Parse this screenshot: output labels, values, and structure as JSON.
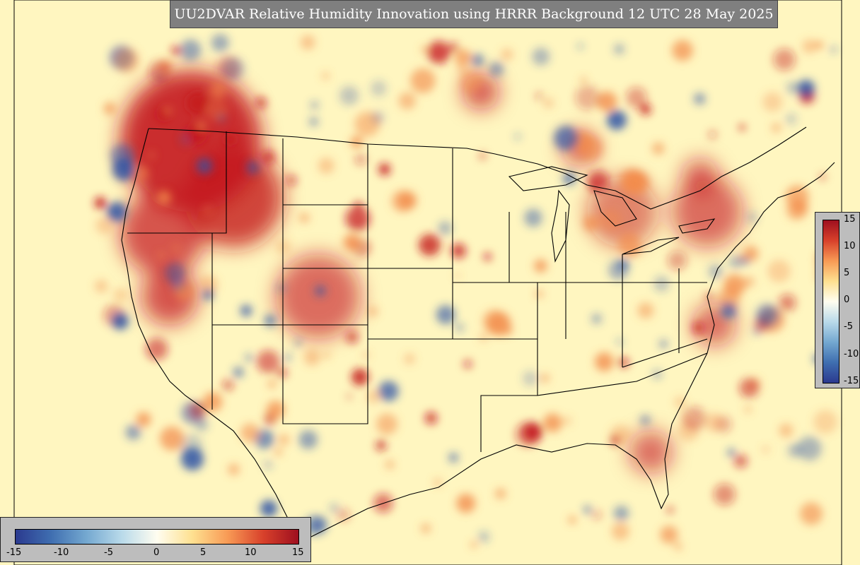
{
  "title": "UU2DVAR Relative Humidity Innovation using HRRR Background 12 UTC 28 May 2025",
  "colorbar": {
    "ticks": [
      "15",
      "10",
      "5",
      "0",
      "-5",
      "-10",
      "-15"
    ],
    "bottom_ticks": [
      "-15",
      "-10",
      "-5",
      "0",
      "5",
      "10",
      "15"
    ],
    "range": [
      -15,
      15
    ],
    "colors": [
      "#2b3a8f",
      "#3f6eb0",
      "#74a8d0",
      "#b9daea",
      "#fffdf0",
      "#fee090",
      "#f89a55",
      "#d8412b",
      "#9e0f1f"
    ]
  },
  "colors": {
    "background": "#fff8c4",
    "positive": "#c4161c",
    "negative": "#2e54a6",
    "boundary": "#000000"
  }
}
